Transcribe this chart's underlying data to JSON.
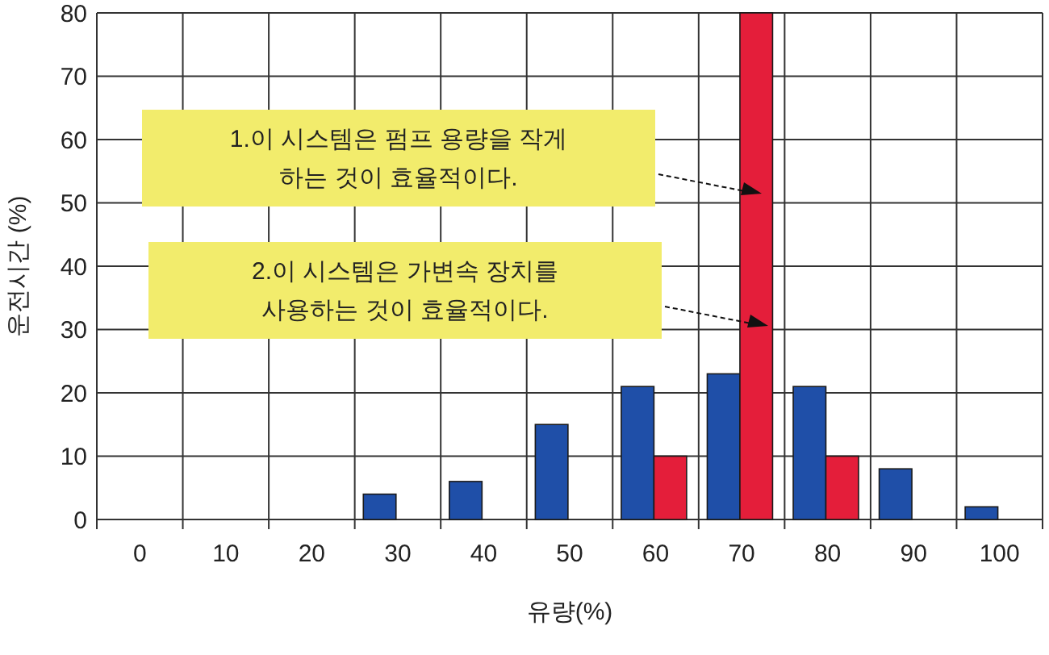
{
  "chart_data": {
    "type": "bar",
    "xlabel": "유량(%)",
    "ylabel": "운전시간 (%)",
    "categories": [
      "0",
      "10",
      "20",
      "30",
      "40",
      "50",
      "60",
      "70",
      "80",
      "90",
      "100"
    ],
    "series": [
      {
        "color": "#1f4fa8",
        "values": [
          null,
          null,
          null,
          4,
          6,
          15,
          21,
          23,
          21,
          8,
          2
        ]
      },
      {
        "color": "#e41e3a",
        "values": [
          null,
          null,
          null,
          null,
          null,
          null,
          10,
          80,
          10,
          null,
          null
        ]
      }
    ],
    "ylim": [
      0,
      80
    ],
    "yticks": [
      0,
      10,
      20,
      30,
      40,
      50,
      60,
      70,
      80
    ],
    "grid": true,
    "annotations": [
      "1.이 시스템은 펌프 용량을 작게\n하는 것이 효율적이다.",
      "2.이 시스템은 가변속 장치를\n사용하는 것이 효율적이다."
    ]
  }
}
